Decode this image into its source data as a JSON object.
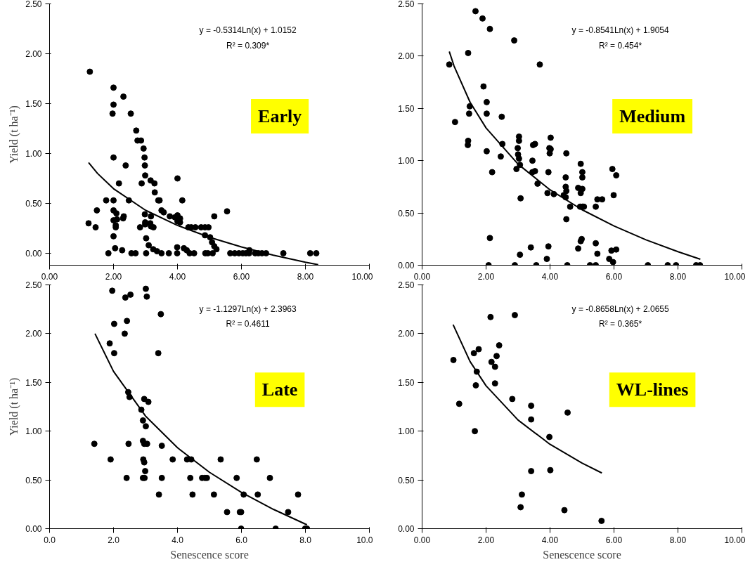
{
  "chart_data": [
    {
      "type": "scatter",
      "ylabel": "Yield (t ha⁻¹)",
      "xlim": [
        0,
        10
      ],
      "ylim": [
        -0.12,
        2.5
      ],
      "xticks": [
        {
          "value": 0,
          "label": "0.00"
        },
        {
          "value": 2,
          "label": "2.00"
        },
        {
          "value": 4,
          "label": "4.00"
        },
        {
          "value": 6,
          "label": "6.00"
        },
        {
          "value": 8,
          "label": "8.00"
        },
        {
          "value": 10,
          "label": "10.00"
        }
      ],
      "yticks": [
        {
          "value": 0,
          "label": "0.00"
        },
        {
          "value": 0.5,
          "label": "0.50"
        },
        {
          "value": 1,
          "label": "1.00"
        },
        {
          "value": 1.5,
          "label": "1.50"
        },
        {
          "value": 2,
          "label": "2.00"
        },
        {
          "value": 2.5,
          "label": "2.50"
        }
      ],
      "annotations": [
        "y = -0.5314Ln(x) + 1.0152",
        "R² = 0.309*",
        "Early"
      ],
      "series": [
        {
          "color": "#000000",
          "marker": "circle",
          "x": [
            1.26,
            2.0,
            2.0,
            1.97,
            2.31,
            2.54,
            2.71,
            2.75,
            2.86,
            2.94,
            2.97,
            2.0,
            2.98,
            2.38,
            2.99,
            2.17,
            2.88,
            3.16,
            3.28,
            3.29,
            4.0,
            1.77,
            2.0,
            2.48,
            3.4,
            3.44,
            4.15,
            1.48,
            2.0,
            2.09,
            2.32,
            2.3,
            3.5,
            3.57,
            5.55,
            5.15,
            3.76,
            3.92,
            4.0,
            4.08,
            4.0,
            4.08,
            2.98,
            1.22,
            1.44,
            2.0,
            2.11,
            2.07,
            2.07,
            2.83,
            2.99,
            2.99,
            3.15,
            3.25,
            3.17,
            3.17,
            4.34,
            4.43,
            4.56,
            4.74,
            4.86,
            4.97,
            4.86,
            5.02,
            5.08,
            5.15,
            5.22,
            2.0,
            3.02,
            3.1,
            3.24,
            3.36,
            2.05,
            2.27,
            3.99,
            4.2,
            4.29,
            1.84,
            2.56,
            2.69,
            3.02,
            3.5,
            3.73,
            3.99,
            4.38,
            4.52,
            4.87,
            4.95,
            5.1,
            5.65,
            5.79,
            5.92,
            6.04,
            6.14,
            6.24,
            6.25,
            6.43,
            6.53,
            6.64,
            6.77,
            7.31,
            8.15,
            8.34
          ],
          "values": [
            1.82,
            1.66,
            1.49,
            1.4,
            1.57,
            1.4,
            1.23,
            1.13,
            1.13,
            1.05,
            0.96,
            0.96,
            0.88,
            0.88,
            0.78,
            0.7,
            0.7,
            0.73,
            0.7,
            0.61,
            0.75,
            0.53,
            0.53,
            0.53,
            0.53,
            0.53,
            0.53,
            0.43,
            0.43,
            0.4,
            0.37,
            0.35,
            0.43,
            0.41,
            0.42,
            0.37,
            0.37,
            0.36,
            0.38,
            0.35,
            0.32,
            0.31,
            0.39,
            0.3,
            0.26,
            0.33,
            0.34,
            0.28,
            0.26,
            0.26,
            0.31,
            0.29,
            0.3,
            0.26,
            0.27,
            0.37,
            0.26,
            0.26,
            0.26,
            0.26,
            0.26,
            0.26,
            0.18,
            0.16,
            0.11,
            0.07,
            0.04,
            0.17,
            0.15,
            0.08,
            0.04,
            0.02,
            0.05,
            0.03,
            0.06,
            0.05,
            0.03,
            0,
            0,
            0,
            0,
            0,
            0,
            0,
            0,
            0,
            0,
            0,
            0,
            0,
            0,
            0,
            0,
            0,
            0,
            0.03,
            0,
            0,
            0,
            0,
            0,
            0,
            0
          ]
        },
        {
          "type": "line",
          "color": "#000000",
          "x": [
            1.22,
            1.5,
            2,
            3,
            4,
            5,
            6,
            7,
            8,
            8.4
          ],
          "values": [
            0.909,
            0.8,
            0.647,
            0.431,
            0.279,
            0.16,
            0.063,
            -0.019,
            -0.09,
            -0.115
          ]
        }
      ]
    },
    {
      "type": "scatter",
      "xlim": [
        0,
        10
      ],
      "ylim": [
        0,
        2.5
      ],
      "xticks": [
        {
          "value": 0,
          "label": "0.00"
        },
        {
          "value": 2,
          "label": "2.00"
        },
        {
          "value": 4,
          "label": "4.00"
        },
        {
          "value": 6,
          "label": "6.00"
        },
        {
          "value": 8,
          "label": "8.00"
        },
        {
          "value": 10,
          "label": "10.00"
        }
      ],
      "yticks": [
        {
          "value": 0,
          "label": "0.00"
        },
        {
          "value": 0.5,
          "label": "0.50"
        },
        {
          "value": 1,
          "label": "1.00"
        },
        {
          "value": 1.5,
          "label": "1.50"
        },
        {
          "value": 2,
          "label": "2.00"
        },
        {
          "value": 2.5,
          "label": "2.50"
        }
      ],
      "annotations": [
        "y = -0.8541Ln(x) + 1.9054",
        "R² = 0.454*",
        "Medium"
      ],
      "series": [
        {
          "color": "#000000",
          "marker": "circle",
          "x": [
            0.85,
            1.03,
            1.44,
            1.67,
            1.89,
            2.12,
            2.88,
            3.68,
            1.92,
            2.02,
            1.49,
            1.47,
            2.02,
            2.49,
            1.44,
            1.43,
            2.02,
            2.51,
            2.46,
            2.19,
            2.12,
            3.03,
            3.03,
            2.99,
            3.0,
            3.03,
            3.06,
            2.95,
            3.08,
            3.45,
            3.47,
            3.53,
            3.45,
            3.53,
            3.61,
            4.02,
            3.98,
            4.02,
            3.99,
            3.95,
            3.92,
            4.12,
            4.51,
            4.49,
            4.49,
            4.51,
            4.43,
            4.49,
            4.63,
            4.51,
            4.96,
            5.01,
            5.01,
            4.88,
            5.01,
            4.96,
            4.94,
            5.01,
            5.06,
            5.43,
            5.48,
            5.63,
            5.95,
            6.07,
            5.99,
            3.4,
            3.95,
            3.06,
            3.9,
            4.99,
            4.96,
            4.88,
            5.43,
            5.48,
            5.85,
            5.97,
            5.92,
            6.07,
            2.08,
            2.9,
            3.57,
            4.54,
            5.25,
            5.43,
            7.06,
            7.68,
            7.94,
            8.57,
            8.69
          ],
          "values": [
            1.92,
            1.37,
            2.03,
            2.43,
            2.36,
            2.26,
            2.15,
            1.92,
            1.71,
            1.56,
            1.52,
            1.45,
            1.45,
            1.42,
            1.19,
            1.15,
            1.09,
            1.16,
            1.04,
            0.89,
            0.26,
            1.23,
            1.19,
            1.12,
            1.06,
            1.02,
            0.96,
            0.92,
            0.64,
            1.0,
            1.15,
            1.16,
            0.89,
            0.9,
            0.78,
            1.22,
            1.12,
            1.11,
            1.07,
            0.89,
            0.69,
            0.68,
            1.07,
            0.84,
            0.75,
            0.71,
            0.67,
            0.65,
            0.56,
            0.44,
            0.97,
            0.89,
            0.84,
            0.74,
            0.73,
            0.69,
            0.56,
            0.56,
            0.56,
            0.56,
            0.63,
            0.63,
            0.92,
            0.86,
            0.67,
            0.17,
            0.18,
            0.1,
            0.06,
            0.25,
            0.23,
            0.16,
            0.21,
            0.11,
            0.06,
            0.03,
            0.14,
            0.15,
            0,
            0,
            0,
            0,
            0,
            0,
            0,
            0,
            0,
            0,
            0
          ]
        },
        {
          "type": "line",
          "color": "#000000",
          "x": [
            0.85,
            1,
            1.5,
            2,
            3,
            4,
            5,
            6,
            7,
            8,
            8.7
          ],
          "values": [
            2.044,
            1.905,
            1.559,
            1.313,
            0.967,
            0.721,
            0.531,
            0.375,
            0.243,
            0.129,
            0.057
          ]
        }
      ]
    },
    {
      "type": "scatter",
      "xlabel": "Senescence score",
      "ylabel": "Yield (t ha⁻¹)",
      "xlim": [
        0,
        10
      ],
      "ylim": [
        0,
        2.5
      ],
      "xticks": [
        {
          "value": 0,
          "label": "0.0"
        },
        {
          "value": 2,
          "label": "2.0"
        },
        {
          "value": 4,
          "label": "4.0"
        },
        {
          "value": 6,
          "label": "6.0"
        },
        {
          "value": 8,
          "label": "8.0"
        },
        {
          "value": 10,
          "label": "10.0"
        }
      ],
      "yticks": [
        {
          "value": 0,
          "label": "0.00"
        },
        {
          "value": 0.5,
          "label": "0.50"
        },
        {
          "value": 1,
          "label": "1.00"
        },
        {
          "value": 1.5,
          "label": "1.50"
        },
        {
          "value": 2,
          "label": "2.00"
        },
        {
          "value": 2.5,
          "label": "2.50"
        }
      ],
      "annotations": [
        "y = -1.1297Ln(x) + 2.3963",
        "R² = 0.4611",
        "Late"
      ],
      "series": [
        {
          "color": "#000000",
          "marker": "circle",
          "x": [
            1.96,
            2.37,
            2.53,
            3.01,
            3.04,
            3.48,
            2.02,
            2.42,
            2.35,
            1.88,
            2.02,
            3.4,
            2.46,
            2.5,
            2.96,
            3.09,
            2.87,
            2.92,
            3.01,
            1.4,
            2.47,
            2.92,
            2.96,
            3.05,
            3.51,
            1.91,
            2.93,
            2.96,
            2.99,
            3.85,
            4.3,
            4.43,
            5.35,
            6.48,
            2.41,
            2.92,
            2.97,
            3.51,
            4.4,
            4.77,
            4.86,
            4.92,
            5.85,
            6.89,
            3.42,
            4.47,
            5.14,
            6.07,
            6.51,
            7.77,
            5.55,
            5.95,
            5.99,
            7.46,
            5.99,
            7.07,
            7.99,
            8.05
          ],
          "values": [
            2.44,
            2.37,
            2.4,
            2.46,
            2.38,
            2.2,
            2.1,
            2.13,
            2.0,
            1.9,
            1.8,
            1.8,
            1.4,
            1.35,
            1.33,
            1.3,
            1.22,
            1.11,
            1.05,
            0.87,
            0.87,
            0.9,
            0.87,
            0.87,
            0.85,
            0.71,
            0.71,
            0.68,
            0.59,
            0.71,
            0.71,
            0.71,
            0.71,
            0.71,
            0.52,
            0.52,
            0.52,
            0.52,
            0.52,
            0.52,
            0.52,
            0.52,
            0.52,
            0.52,
            0.35,
            0.35,
            0.35,
            0.35,
            0.35,
            0.35,
            0.17,
            0.17,
            0.17,
            0.17,
            0,
            0,
            0,
            0
          ]
        },
        {
          "type": "line",
          "color": "#000000",
          "x": [
            1.42,
            2,
            3,
            4,
            5,
            6,
            7,
            8,
            8.05
          ],
          "values": [
            2.0,
            1.613,
            1.155,
            0.83,
            0.578,
            0.372,
            0.198,
            0.047,
            0.04
          ]
        }
      ]
    },
    {
      "type": "scatter",
      "xlabel": "Senescence score",
      "xlim": [
        0,
        10
      ],
      "ylim": [
        0,
        2.5
      ],
      "xticks": [
        {
          "value": 0,
          "label": "0.00"
        },
        {
          "value": 2,
          "label": "2.00"
        },
        {
          "value": 4,
          "label": "4.00"
        },
        {
          "value": 6,
          "label": "6.00"
        },
        {
          "value": 8,
          "label": "8.00"
        },
        {
          "value": 10,
          "label": "10.00"
        }
      ],
      "yticks": [
        {
          "value": 0,
          "label": "0.00"
        },
        {
          "value": 0.5,
          "label": "0.50"
        },
        {
          "value": 1,
          "label": "1.00"
        },
        {
          "value": 1.5,
          "label": "1.50"
        },
        {
          "value": 2,
          "label": "2.00"
        },
        {
          "value": 2.5,
          "label": "2.50"
        }
      ],
      "annotations": [
        "y = -0.8658Ln(x) + 2.0655",
        "R² = 0.365*",
        "WL-lines"
      ],
      "series": [
        {
          "color": "#000000",
          "marker": "circle",
          "x": [
            0.98,
            1.16,
            1.62,
            1.77,
            1.71,
            1.68,
            1.65,
            2.14,
            2.9,
            2.41,
            2.33,
            2.17,
            2.28,
            2.28,
            2.82,
            3.41,
            3.41,
            4.55,
            3.98,
            3.41,
            4.01,
            3.12,
            3.08,
            4.45,
            5.61
          ],
          "values": [
            1.73,
            1.28,
            1.8,
            1.84,
            1.61,
            1.47,
            1.0,
            2.17,
            2.19,
            1.88,
            1.77,
            1.71,
            1.66,
            1.49,
            1.33,
            1.26,
            1.12,
            1.19,
            0.94,
            0.59,
            0.6,
            0.35,
            0.22,
            0.19,
            0.08
          ]
        },
        {
          "type": "line",
          "color": "#000000",
          "x": [
            0.97,
            1.5,
            2,
            3,
            4,
            5,
            5.62
          ],
          "values": [
            2.092,
            1.714,
            1.465,
            1.114,
            0.865,
            0.672,
            0.571
          ]
        }
      ]
    }
  ]
}
